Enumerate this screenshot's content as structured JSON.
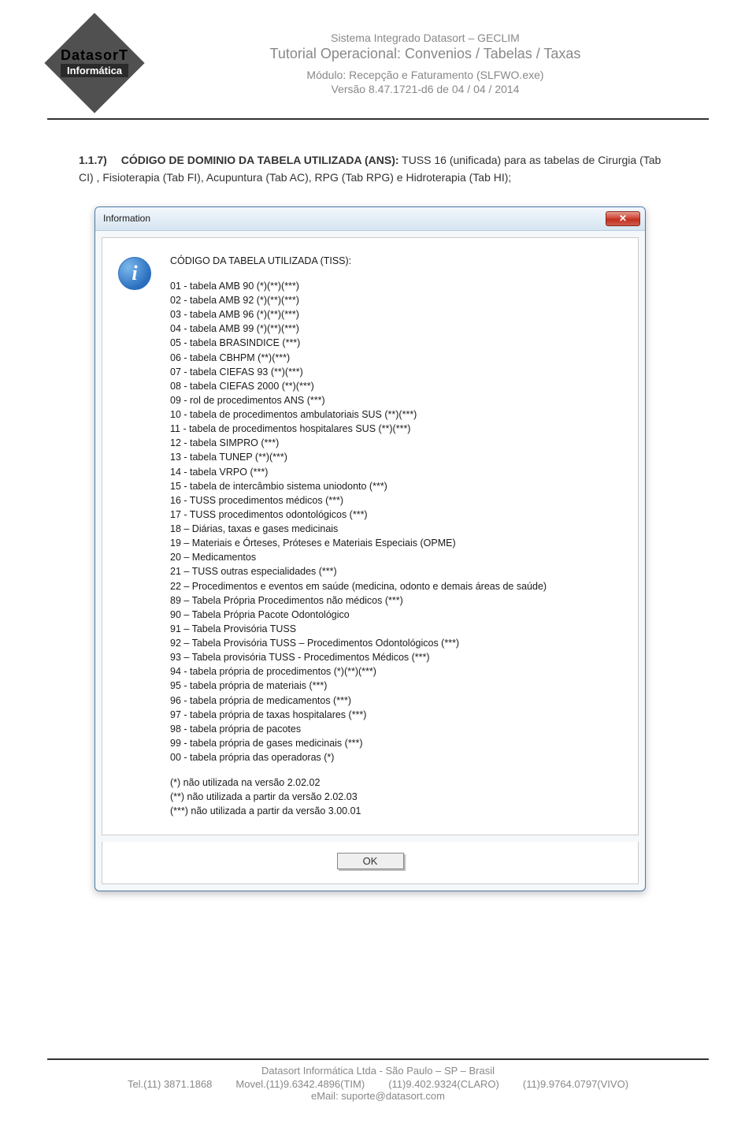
{
  "logo": {
    "brand1": "DatasorT",
    "brand2": "Informática"
  },
  "header": {
    "line1": "Sistema Integrado Datasort – GECLIM",
    "line2": "Tutorial Operacional: Convenios / Tabelas / Taxas",
    "line3": "Módulo: Recepção e Faturamento (SLFWO.exe)",
    "line4": "Versão 8.47.1721-d6 de 04 / 04 / 2014"
  },
  "section": {
    "num": "1.1.7)",
    "title": "CÓDIGO DE DOMINIO DA TABELA UTILIZADA (ANS):",
    "body": " TUSS 16 (unificada) para as tabelas de Cirurgia (Tab CI) , Fisioterapia (Tab FI), Acupuntura (Tab AC), RPG (Tab RPG) e Hidroterapia (Tab HI);"
  },
  "dialog": {
    "title": "Information",
    "close_glyph": "✕",
    "heading": "CÓDIGO DA TABELA UTILIZADA (TISS):",
    "lines": [
      "01 - tabela AMB 90 (*)(**)(***)",
      "02 - tabela AMB 92 (*)(**)(***)",
      "03 - tabela AMB 96 (*)(**)(***)",
      "04 - tabela AMB 99 (*)(**)(***)",
      "05 - tabela BRASINDICE (***)",
      "06 - tabela CBHPM (**)(***)",
      "07 - tabela CIEFAS 93 (**)(***)",
      "08 - tabela CIEFAS 2000 (**)(***)",
      "09 - rol de procedimentos ANS (***)",
      "10 - tabela de procedimentos ambulatoriais SUS (**)(***)",
      "11 - tabela de procedimentos hospitalares SUS (**)(***)",
      "12 - tabela SIMPRO (***)",
      "13 - tabela TUNEP (**)(***)",
      "14 - tabela VRPO (***)",
      "15 - tabela de intercâmbio sistema uniodonto (***)",
      "16 - TUSS procedimentos médicos (***)",
      "17 - TUSS procedimentos odontológicos (***)",
      "18 – Diárias, taxas e gases medicinais",
      "19 – Materiais e Órteses, Próteses e Materiais Especiais (OPME)",
      "20 – Medicamentos",
      "21 – TUSS outras especialidades (***)",
      "22 – Procedimentos e eventos em saúde (medicina, odonto e demais áreas de saúde)",
      "89 – Tabela Própria Procedimentos não médicos (***)",
      "90 – Tabela Própria Pacote Odontológico",
      "91 – Tabela Provisória TUSS",
      "92 – Tabela Provisória TUSS – Procedimentos Odontológicos (***)",
      "93 – Tabela provisória TUSS - Procedimentos Médicos (***)",
      "94 - tabela própria de procedimentos (*)(**)(***)",
      "95 - tabela própria de materiais (***)",
      "96 - tabela própria de medicamentos (***)",
      "97 - tabela própria de taxas hospitalares (***)",
      "98 - tabela própria de pacotes",
      "99 - tabela própria de gases medicinais (***)",
      "00 - tabela própria das operadoras (*)"
    ],
    "notes": [
      "(*)  não utilizada na versão 2.02.02",
      "(**) não utilizada a partir da versão 2.02.03",
      "(***) não utilizada a partir da versão 3.00.01"
    ],
    "ok_label": "OK"
  },
  "footer": {
    "company": "Datasort Informática Ltda    -    São Paulo – SP – Brasil",
    "contacts": [
      "Tel.(11) 3871.1868",
      "Movel.(11)9.6342.4896(TIM)",
      "(11)9.402.9324(CLARO)",
      "(11)9.9764.0797(VIVO)"
    ],
    "email": "eMail: suporte@datasort.com"
  }
}
